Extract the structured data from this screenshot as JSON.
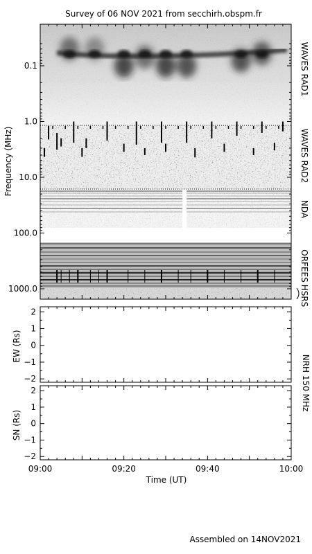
{
  "title": "Survey of 06 NOV 2021 from secchirh.obspm.fr",
  "footer": "Assembled on 14NOV2021",
  "chart_data": [
    {
      "type": "heatmap",
      "panel": "dynamic-spectrum",
      "ylabel": "Frequency (MHz)",
      "yscale": "log",
      "ylim": [
        0.03,
        1300
      ],
      "ytick_labels": [
        "0.1",
        "1.0",
        "10.0",
        "100.0",
        "1000.0"
      ],
      "ytick_values": [
        0.1,
        1.0,
        10.0,
        100.0,
        1000.0
      ],
      "bands": [
        {
          "name": "WAVES RAD1",
          "freq_range": [
            0.02,
            1.0
          ]
        },
        {
          "name": "WAVES RAD2",
          "freq_range": [
            1.0,
            14.0
          ]
        },
        {
          "name": "NDA",
          "freq_range": [
            14.0,
            80.0
          ]
        },
        {
          "name": "ORFEES",
          "freq_range": [
            140.0,
            1000.0
          ]
        },
        {
          "name": "HSRS",
          "freq_range": [
            1000.0,
            1300.0
          ]
        }
      ],
      "rad1_emission": {
        "center_freq": 0.055,
        "peaks": [
          {
            "time": "09:07",
            "freq": 0.05,
            "intensity": 0.7
          },
          {
            "time": "09:13",
            "freq": 0.05,
            "intensity": 0.55
          },
          {
            "time": "09:20",
            "freq": 0.1,
            "intensity": 0.9
          },
          {
            "time": "09:25",
            "freq": 0.07,
            "intensity": 0.7
          },
          {
            "time": "09:30",
            "freq": 0.1,
            "intensity": 0.9
          },
          {
            "time": "09:35",
            "freq": 0.1,
            "intensity": 0.85
          },
          {
            "time": "09:48",
            "freq": 0.08,
            "intensity": 0.85
          },
          {
            "time": "09:53",
            "freq": 0.06,
            "intensity": 0.8
          }
        ]
      },
      "rad2_bursts": [
        {
          "time": "09:01",
          "f_low": 3.0,
          "f_high": 4.3
        },
        {
          "time": "09:02",
          "f_low": 1.2,
          "f_high": 2.1
        },
        {
          "time": "09:04",
          "f_low": 1.6,
          "f_high": 3.2
        },
        {
          "time": "09:05",
          "f_low": 2.0,
          "f_high": 2.8
        },
        {
          "time": "09:08",
          "f_low": 1.0,
          "f_high": 2.4
        },
        {
          "time": "09:10",
          "f_low": 3.0,
          "f_high": 4.3
        },
        {
          "time": "09:11",
          "f_low": 2.0,
          "f_high": 3.0
        },
        {
          "time": "09:16",
          "f_low": 1.0,
          "f_high": 2.2
        },
        {
          "time": "09:20",
          "f_low": 2.5,
          "f_high": 3.5
        },
        {
          "time": "09:23",
          "f_low": 1.0,
          "f_high": 2.6
        },
        {
          "time": "09:25",
          "f_low": 3.0,
          "f_high": 4.0
        },
        {
          "time": "09:29",
          "f_low": 1.0,
          "f_high": 2.4
        },
        {
          "time": "09:30",
          "f_low": 2.5,
          "f_high": 3.5
        },
        {
          "time": "09:35",
          "f_low": 1.0,
          "f_high": 2.4
        },
        {
          "time": "09:37",
          "f_low": 3.0,
          "f_high": 4.4
        },
        {
          "time": "09:41",
          "f_low": 1.0,
          "f_high": 2.0
        },
        {
          "time": "09:44",
          "f_low": 2.5,
          "f_high": 3.5
        },
        {
          "time": "09:47",
          "f_low": 1.0,
          "f_high": 1.8
        },
        {
          "time": "09:51",
          "f_low": 3.0,
          "f_high": 4.0
        },
        {
          "time": "09:53",
          "f_low": 1.0,
          "f_high": 1.6
        },
        {
          "time": "09:56",
          "f_low": 2.4,
          "f_high": 3.3
        },
        {
          "time": "09:58",
          "f_low": 1.0,
          "f_high": 1.5
        }
      ],
      "nda_gap": {
        "start": "09:34",
        "end": "09:35"
      }
    },
    {
      "type": "scatter",
      "panel": "nrh-ew",
      "ylabel": "EW (Rs)",
      "ylim": [
        -2.2,
        2.3
      ],
      "ytick_labels": [
        "2",
        "1",
        "0",
        "−1",
        "−2"
      ],
      "ytick_values": [
        2,
        1,
        0,
        -1,
        -2
      ]
    },
    {
      "type": "scatter",
      "panel": "nrh-sn",
      "ylabel": "SN (Rs)",
      "ylim": [
        -2.2,
        2.3
      ],
      "ytick_labels": [
        "2",
        "1",
        "0",
        "−1",
        "−2"
      ],
      "ytick_values": [
        2,
        1,
        0,
        -1,
        -2
      ]
    }
  ],
  "nrh_label": "NRH 150 MHz",
  "xaxis": {
    "xlabel": "Time (UT)",
    "xlim": [
      "09:00",
      "10:00"
    ],
    "tick_labels": [
      "09:00",
      "09:20",
      "09:40",
      "10:00"
    ]
  }
}
